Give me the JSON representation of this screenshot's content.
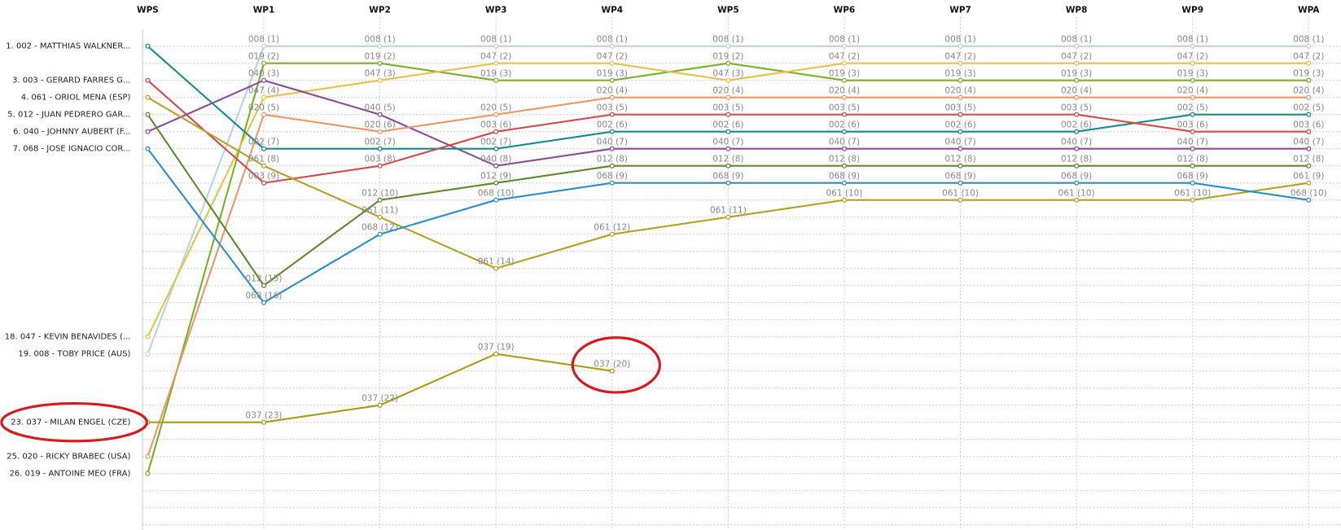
{
  "chart_data": {
    "type": "bump",
    "categories": [
      "WPS",
      "WP1",
      "WP2",
      "WP3",
      "WP4",
      "WP5",
      "WP6",
      "WP7",
      "WP8",
      "WP9",
      "WPA"
    ],
    "ylim": [
      0,
      29
    ],
    "inverted": true,
    "grid": true,
    "series": [
      {
        "name": "19. 008 - TOBY PRICE (AUS)",
        "color": "#b9d3e6",
        "values": [
          19,
          1,
          1,
          1,
          1,
          1,
          1,
          1,
          1,
          1,
          1
        ],
        "value_labels": [
          null,
          "008 (1)",
          "008 (1)",
          "008 (1)",
          "008 (1)",
          "008 (1)",
          "008 (1)",
          "008 (1)",
          "008 (1)",
          "008 (1)",
          "008 (1)"
        ]
      },
      {
        "name": "26. 019 - ANTOINE MEO (FRA)",
        "color": "#78b02a",
        "values": [
          26,
          2,
          2,
          3,
          3,
          2,
          3,
          3,
          3,
          3,
          3
        ],
        "value_labels": [
          null,
          "019 (2)",
          "019 (2)",
          "019 (3)",
          "019 (3)",
          "019 (2)",
          "019 (3)",
          "019 (3)",
          "019 (3)",
          "019 (3)",
          "019 (3)"
        ]
      },
      {
        "name": "18. 047 - KEVIN BENAVIDES (...",
        "color": "#e8c04a",
        "values": [
          18,
          4,
          3,
          2,
          2,
          3,
          2,
          2,
          2,
          2,
          2
        ],
        "value_labels": [
          null,
          "047 (4)",
          "047 (3)",
          "047 (2)",
          "047 (2)",
          "047 (3)",
          "047 (2)",
          "047 (2)",
          "047 (2)",
          "047 (2)",
          "047 (2)"
        ]
      },
      {
        "name": "6. 040 - JOHNNY AUBERT (F...",
        "color": "#8c4d98",
        "values": [
          6,
          3,
          5,
          8,
          7,
          7,
          7,
          7,
          7,
          7,
          7
        ],
        "value_labels": [
          null,
          "040 (3)",
          "040 (5)",
          "040 (8)",
          "040 (7)",
          "040 (7)",
          "040 (7)",
          "040 (7)",
          "040 (7)",
          "040 (7)",
          "040 (7)"
        ]
      },
      {
        "name": "25. 020 - RICKY BRABEC (USA)",
        "color": "#eb9868",
        "values": [
          25,
          5,
          6,
          5,
          4,
          4,
          4,
          4,
          4,
          4,
          4
        ],
        "value_labels": [
          null,
          "020 (5)",
          "020 (6)",
          "020 (5)",
          "020 (4)",
          "020 (4)",
          "020 (4)",
          "020 (4)",
          "020 (4)",
          "020 (4)",
          "020 (4)"
        ]
      },
      {
        "name": "1. 002 - MATTHIAS WALKNER...",
        "color": "#178b8b",
        "values": [
          1,
          7,
          7,
          7,
          6,
          6,
          6,
          6,
          6,
          5,
          5
        ],
        "value_labels": [
          null,
          "002 (7)",
          "002 (7)",
          "002 (7)",
          "002 (6)",
          "002 (6)",
          "002 (6)",
          "002 (6)",
          "002 (6)",
          "002 (5)",
          "002 (5)"
        ]
      },
      {
        "name": "3. 003 - GERARD FARRES G...",
        "color": "#d64a4a",
        "values": [
          3,
          9,
          8,
          6,
          5,
          5,
          5,
          5,
          5,
          6,
          6
        ],
        "value_labels": [
          null,
          "003 (9)",
          "003 (8)",
          "003 (6)",
          "003 (5)",
          "003 (5)",
          "003 (5)",
          "003 (5)",
          "003 (5)",
          "003 (6)",
          "003 (6)"
        ]
      },
      {
        "name": "4. 061 - ORIOL MENA (ESP)",
        "color": "#b3a325",
        "values": [
          4,
          8,
          11,
          14,
          12,
          11,
          10,
          10,
          10,
          10,
          9
        ],
        "value_labels": [
          null,
          "061 (8)",
          "061 (11)",
          "061 (14)",
          "061 (12)",
          "061 (11)",
          "061 (10)",
          "061 (10)",
          "061 (10)",
          "061 (10)",
          "061 (9)"
        ]
      },
      {
        "name": "5. 012 - JUAN PEDRERO GAR...",
        "color": "#5b8a2e",
        "values": [
          5,
          15,
          10,
          9,
          8,
          8,
          8,
          8,
          8,
          8,
          8
        ],
        "value_labels": [
          null,
          "012 (15)",
          "012 (10)",
          "012 (9)",
          "012 (8)",
          "012 (8)",
          "012 (8)",
          "012 (8)",
          "012 (8)",
          "012 (8)",
          "012 (8)"
        ]
      },
      {
        "name": "7. 068 - JOSE IGNACIO COR...",
        "color": "#2a8fc6",
        "values": [
          7,
          16,
          12,
          10,
          9,
          9,
          9,
          9,
          9,
          9,
          10
        ],
        "value_labels": [
          null,
          "068 (16)",
          "068 (12)",
          "068 (10)",
          "068 (9)",
          "068 (9)",
          "068 (9)",
          "068 (9)",
          "068 (9)",
          "068 (9)",
          "068 (10)"
        ]
      },
      {
        "name": "23. 037 - MILAN ENGEL (CZE)",
        "color": "#a89c12",
        "values": [
          23,
          23,
          22,
          19,
          20,
          null,
          null,
          null,
          null,
          null,
          null
        ],
        "value_labels": [
          null,
          "037 (23)",
          "037 (22)",
          "037 (19)",
          "037 (20)",
          null,
          null,
          null,
          null,
          null,
          null
        ]
      }
    ]
  }
}
